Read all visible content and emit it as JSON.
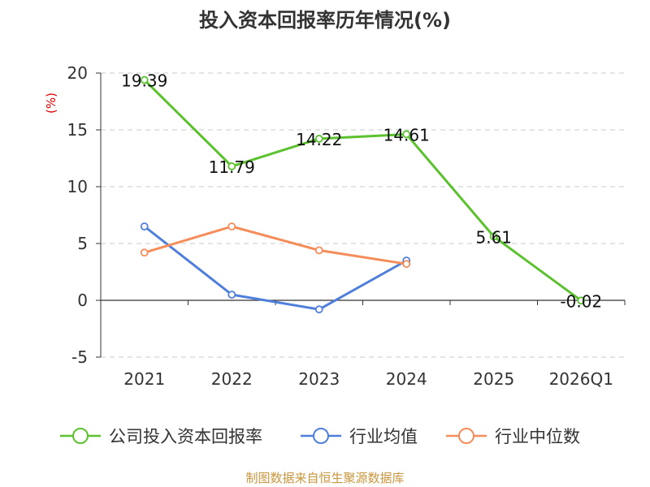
{
  "chart_data": {
    "type": "line",
    "title": "投入资本回报率历年情况(%)",
    "ylabel": "(%)",
    "categories": [
      "2021",
      "2022",
      "2023",
      "2024",
      "2025",
      "2026Q1"
    ],
    "yticks": [
      20,
      15,
      10,
      5,
      0,
      -5
    ],
    "ylim": [
      -5,
      20
    ],
    "grid": true,
    "legend_position": "bottom",
    "series": [
      {
        "name": "公司投入资本回报率",
        "color": "#5cc12e",
        "values": [
          19.39,
          11.79,
          14.22,
          14.61,
          5.61,
          -0.02
        ],
        "labels": [
          "19.39",
          "11.79",
          "14.22",
          "14.61",
          "5.61",
          "-0.02"
        ]
      },
      {
        "name": "行业均值",
        "color": "#4f7fdb",
        "values": [
          6.5,
          0.5,
          -0.8,
          3.5,
          null,
          null
        ]
      },
      {
        "name": "行业中位数",
        "color": "#f58d5a",
        "values": [
          4.2,
          6.5,
          4.4,
          3.2,
          null,
          null
        ]
      }
    ],
    "source": "制图数据来自恒生聚源数据库"
  }
}
